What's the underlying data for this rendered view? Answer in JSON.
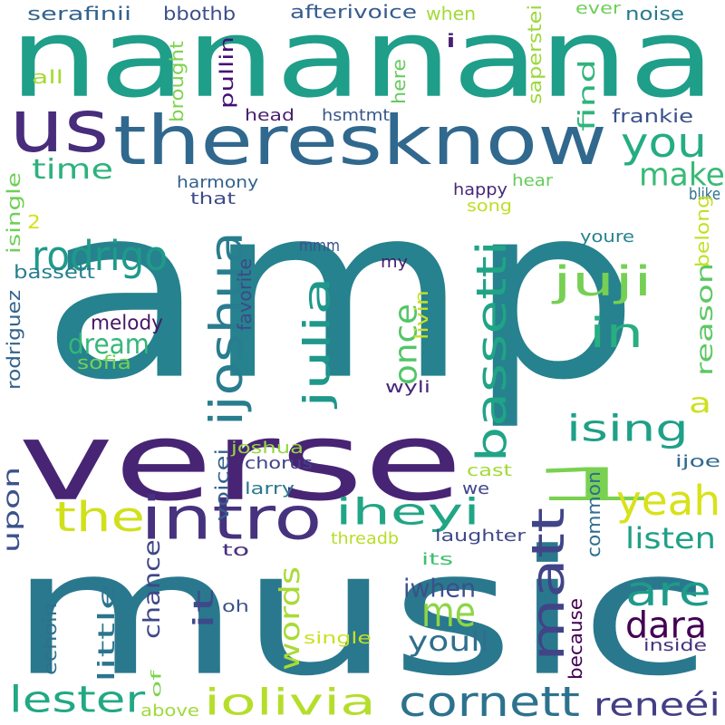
{
  "word_cloud": {
    "words": [
      {
        "text": "amp",
        "color": "#26828e"
      },
      {
        "text": "nananana",
        "color": "#1f9e89"
      },
      {
        "text": "music",
        "color": "#2a788e"
      },
      {
        "text": "verse",
        "color": "#482475"
      },
      {
        "text": "theresknow",
        "color": "#31688e"
      },
      {
        "text": "intro",
        "color": "#46327e"
      },
      {
        "text": "us",
        "color": "#472d7b"
      },
      {
        "text": "1",
        "color": "#7ad151"
      },
      {
        "text": "matt",
        "color": "#414487"
      },
      {
        "text": "cornett",
        "color": "#2c728e"
      },
      {
        "text": "iolivia",
        "color": "#b5de2b"
      },
      {
        "text": "lester",
        "color": "#22a884"
      },
      {
        "text": "bassetti",
        "color": "#20a486"
      },
      {
        "text": "ijoshua",
        "color": "#287d8e"
      },
      {
        "text": "julia",
        "color": "#1f988b"
      },
      {
        "text": "rodrigo",
        "color": "#1f9a8a"
      },
      {
        "text": "juji",
        "color": "#75d054"
      },
      {
        "text": "you",
        "color": "#25ac82"
      },
      {
        "text": "in",
        "color": "#28ae80"
      },
      {
        "text": "ising",
        "color": "#1fa088"
      },
      {
        "text": "iheyi",
        "color": "#21a685"
      },
      {
        "text": "yeah",
        "color": "#d8e219"
      },
      {
        "text": "the",
        "color": "#d0e11c"
      },
      {
        "text": "are",
        "color": "#1e9b8a"
      },
      {
        "text": "me",
        "color": "#8ed645"
      },
      {
        "text": "dara",
        "color": "#440154"
      },
      {
        "text": "it",
        "color": "#3e4989"
      },
      {
        "text": "reneéi",
        "color": "#433e85"
      },
      {
        "text": "youll",
        "color": "#2e6f8e"
      },
      {
        "text": "words",
        "color": "#a8db34"
      },
      {
        "text": "make",
        "color": "#3aba76"
      },
      {
        "text": "time",
        "color": "#2db27d"
      },
      {
        "text": "dream",
        "color": "#35b779"
      },
      {
        "text": "once",
        "color": "#52c569"
      },
      {
        "text": "find",
        "color": "#2fb47c"
      },
      {
        "text": "upon",
        "color": "#3b528b"
      },
      {
        "text": "a",
        "color": "#cde11d"
      },
      {
        "text": "listen",
        "color": "#1fa187"
      },
      {
        "text": "little",
        "color": "#2b748e"
      },
      {
        "text": "chance",
        "color": "#3f4788"
      },
      {
        "text": "iwhen",
        "color": "#3c508b"
      },
      {
        "text": "melody",
        "color": "#481668"
      },
      {
        "text": "reason",
        "color": "#5cc863"
      },
      {
        "text": "sofia",
        "color": "#73d056"
      },
      {
        "text": "bassett",
        "color": "#277f8e"
      },
      {
        "text": "rodriguez",
        "color": "#32648e"
      },
      {
        "text": "serafinii",
        "color": "#33628d"
      },
      {
        "text": "bbothb",
        "color": "#3d4e8a"
      },
      {
        "text": "afterivoice",
        "color": "#365d8d"
      },
      {
        "text": "when",
        "color": "#a2da37"
      },
      {
        "text": "saperstei",
        "color": "#9bd93c"
      },
      {
        "text": "ever",
        "color": "#6ece58"
      },
      {
        "text": "noise",
        "color": "#297a8e"
      },
      {
        "text": "all",
        "color": "#a5db36"
      },
      {
        "text": "brought",
        "color": "#7fd34e"
      },
      {
        "text": "pullin",
        "color": "#440f76"
      },
      {
        "text": "i",
        "color": "#482173"
      },
      {
        "text": "here",
        "color": "#65cb5e"
      },
      {
        "text": "head",
        "color": "#481f70"
      },
      {
        "text": "hsmtmt",
        "color": "#38588c"
      },
      {
        "text": "frankie",
        "color": "#3b518b"
      },
      {
        "text": "harmony",
        "color": "#33628d"
      },
      {
        "text": "that",
        "color": "#3e4a89"
      },
      {
        "text": "happy",
        "color": "#482979"
      },
      {
        "text": "hear",
        "color": "#67cc5c"
      },
      {
        "text": "blike",
        "color": "#2c718e"
      },
      {
        "text": "song",
        "color": "#bddf26"
      },
      {
        "text": "belong",
        "color": "#c2df23"
      },
      {
        "text": "isingle",
        "color": "#70cf57"
      },
      {
        "text": "2",
        "color": "#d2e21b"
      },
      {
        "text": "mmm",
        "color": "#3b528b"
      },
      {
        "text": "youre",
        "color": "#26828e"
      },
      {
        "text": "my",
        "color": "#481a6c"
      },
      {
        "text": "favorite",
        "color": "#3e4989"
      },
      {
        "text": "livin",
        "color": "#c8e020"
      },
      {
        "text": "wyli",
        "color": "#482878"
      },
      {
        "text": "joshua",
        "color": "#95d840"
      },
      {
        "text": "voicei",
        "color": "#34618d"
      },
      {
        "text": "chorus",
        "color": "#424086"
      },
      {
        "text": "cast",
        "color": "#a2da37"
      },
      {
        "text": "ijoe",
        "color": "#306a8e"
      },
      {
        "text": "larry",
        "color": "#2a788e"
      },
      {
        "text": "we",
        "color": "#404688"
      },
      {
        "text": "common",
        "color": "#2e6e8e"
      },
      {
        "text": "laughter",
        "color": "#3f4889"
      },
      {
        "text": "threadb",
        "color": "#b8de29"
      },
      {
        "text": "to",
        "color": "#472e7c"
      },
      {
        "text": "its",
        "color": "#42be71"
      },
      {
        "text": "oh",
        "color": "#3b528b"
      },
      {
        "text": "single",
        "color": "#cae11f"
      },
      {
        "text": "because",
        "color": "#440154"
      },
      {
        "text": "inside",
        "color": "#46327e"
      },
      {
        "text": "echoin",
        "color": "#2d708e"
      },
      {
        "text": "of",
        "color": "#7fd34e"
      },
      {
        "text": "above",
        "color": "#9fda3a"
      }
    ]
  }
}
